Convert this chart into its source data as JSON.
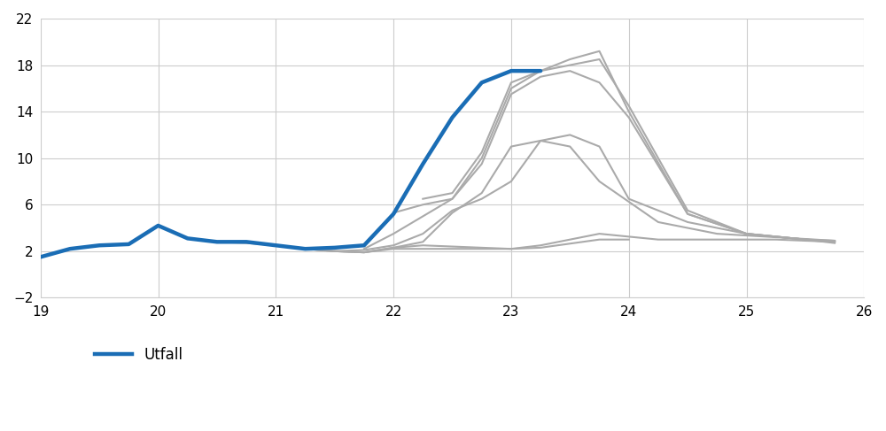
{
  "utfall": {
    "x": [
      19,
      19.25,
      19.5,
      19.75,
      20.0,
      20.25,
      20.5,
      20.75,
      21.0,
      21.25,
      21.5,
      21.75,
      22.0,
      22.25,
      22.5,
      22.75,
      23.0,
      23.25
    ],
    "y": [
      1.5,
      2.2,
      2.5,
      2.6,
      4.2,
      3.1,
      2.8,
      2.8,
      2.5,
      2.2,
      2.3,
      2.5,
      5.2,
      9.5,
      13.5,
      16.5,
      17.5,
      17.5
    ]
  },
  "forecasts": [
    {
      "x": [
        20.5,
        20.75,
        21.0,
        21.25,
        21.5,
        21.75,
        22.0,
        22.25,
        22.5,
        22.75,
        23.0,
        23.25,
        23.75,
        24.0
      ],
      "y": [
        2.8,
        2.7,
        2.5,
        2.2,
        2.0,
        1.9,
        2.2,
        2.2,
        2.2,
        2.2,
        2.2,
        2.3,
        3.0,
        3.0
      ]
    },
    {
      "x": [
        21.0,
        21.25,
        21.5,
        21.75,
        22.0,
        22.25,
        22.5,
        22.75,
        23.0,
        23.25,
        23.75,
        24.25,
        24.75,
        25.25,
        25.75
      ],
      "y": [
        2.5,
        2.2,
        2.0,
        1.9,
        2.3,
        2.5,
        2.4,
        2.3,
        2.2,
        2.5,
        3.5,
        3.0,
        3.0,
        3.0,
        2.8
      ]
    },
    {
      "x": [
        21.25,
        21.5,
        21.75,
        22.0,
        22.25,
        22.5,
        22.75,
        23.0,
        23.25,
        23.5,
        23.75,
        24.25,
        24.75,
        25.25,
        25.75
      ],
      "y": [
        2.2,
        2.0,
        1.9,
        2.3,
        2.8,
        5.3,
        7.0,
        11.0,
        11.5,
        11.0,
        8.0,
        4.5,
        3.5,
        3.2,
        2.9
      ]
    },
    {
      "x": [
        21.5,
        21.75,
        22.0,
        22.25,
        22.5,
        22.75,
        23.0,
        23.25,
        23.5,
        23.75,
        24.0,
        24.5,
        25.0,
        25.5,
        25.75
      ],
      "y": [
        2.0,
        2.1,
        2.5,
        3.5,
        5.5,
        6.5,
        8.0,
        11.5,
        12.0,
        11.0,
        6.5,
        4.5,
        3.5,
        3.0,
        2.9
      ]
    },
    {
      "x": [
        21.75,
        22.0,
        22.25,
        22.5,
        22.75,
        23.0,
        23.25,
        23.5,
        23.75,
        24.0,
        24.5,
        25.0,
        25.5,
        25.75
      ],
      "y": [
        2.2,
        3.5,
        5.0,
        6.5,
        9.5,
        15.5,
        17.0,
        17.5,
        16.5,
        13.5,
        5.2,
        3.5,
        3.0,
        2.8
      ]
    },
    {
      "x": [
        22.0,
        22.25,
        22.5,
        22.75,
        23.0,
        23.25,
        23.5,
        23.75,
        24.0,
        24.5,
        25.0,
        25.5,
        25.75
      ],
      "y": [
        5.3,
        6.0,
        6.5,
        10.0,
        16.0,
        17.5,
        18.5,
        19.2,
        14.0,
        5.2,
        3.5,
        3.0,
        2.7
      ]
    },
    {
      "x": [
        22.25,
        22.5,
        22.75,
        23.0,
        23.25,
        23.5,
        23.75,
        24.0,
        24.5,
        25.0,
        25.5,
        25.75
      ],
      "y": [
        6.5,
        7.0,
        10.5,
        16.5,
        17.5,
        18.0,
        18.5,
        14.5,
        5.5,
        3.5,
        3.0,
        2.8
      ]
    }
  ],
  "utfall_color": "#1a6db5",
  "forecast_color": "#aaaaaa",
  "utfall_linewidth": 3.2,
  "forecast_linewidth": 1.5,
  "xlim": [
    19,
    26
  ],
  "ylim": [
    -2,
    22
  ],
  "xticks": [
    19,
    20,
    21,
    22,
    23,
    24,
    25,
    26
  ],
  "yticks": [
    -2,
    2,
    6,
    10,
    14,
    18,
    22
  ],
  "grid_color": "#cccccc",
  "background_color": "#ffffff",
  "legend_label": "Utfall",
  "legend_fontsize": 12
}
